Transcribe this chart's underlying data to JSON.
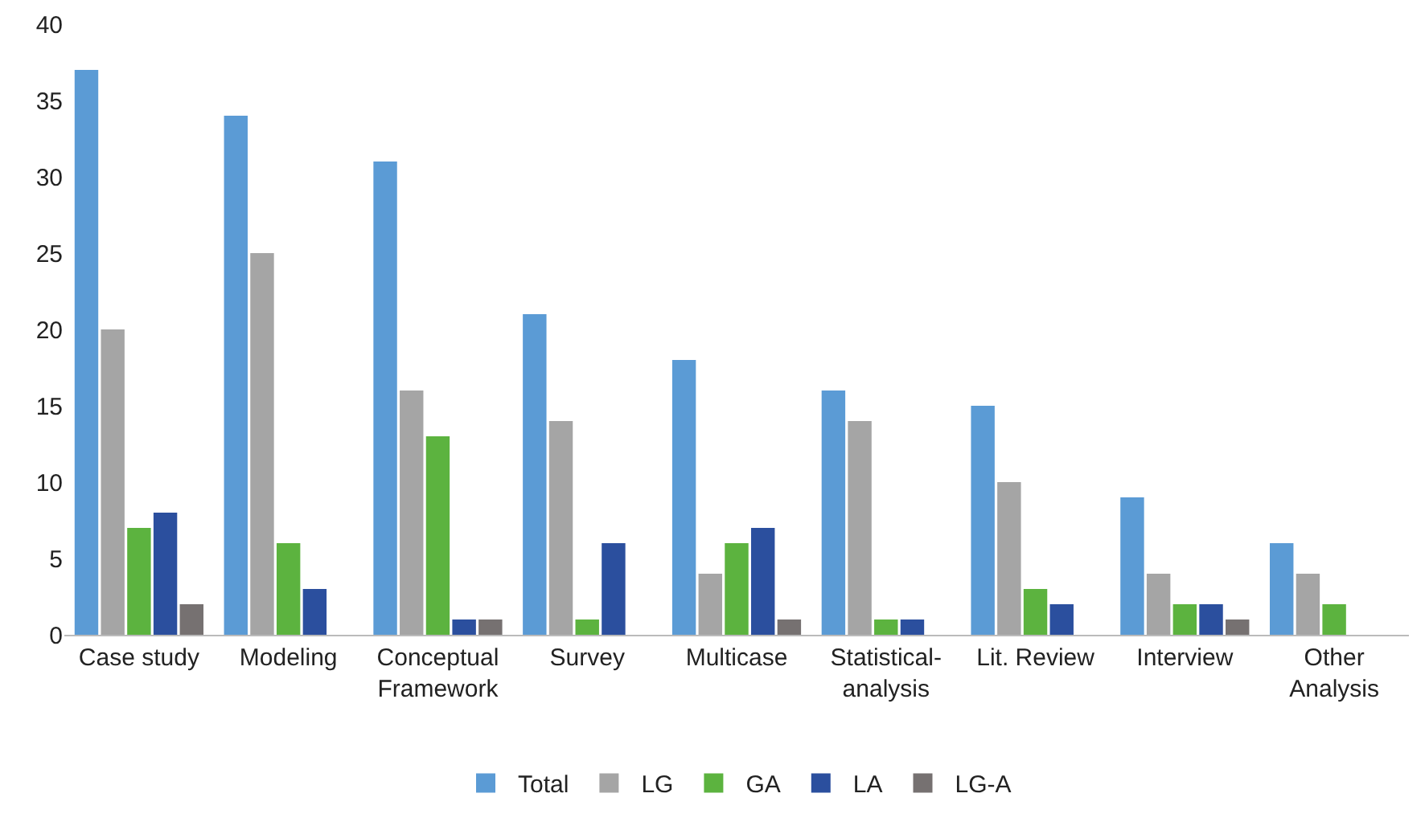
{
  "chart_data": {
    "type": "bar",
    "categories": [
      "Case study",
      "Modeling",
      "Conceptual Framework",
      "Survey",
      "Multicase",
      "Statistical-analysis",
      "Lit. Review",
      "Interview",
      "Other Analysis"
    ],
    "series": [
      {
        "name": "Total",
        "color": "#5b9bd5",
        "values": [
          37,
          34,
          31,
          21,
          18,
          16,
          15,
          9,
          6
        ]
      },
      {
        "name": "LG",
        "color": "#a5a5a5",
        "values": [
          20,
          25,
          16,
          14,
          4,
          14,
          10,
          4,
          4
        ]
      },
      {
        "name": "GA",
        "color": "#5cb33f",
        "values": [
          7,
          6,
          13,
          1,
          6,
          1,
          3,
          2,
          2
        ]
      },
      {
        "name": "LA",
        "color": "#2b4f9e",
        "values": [
          8,
          3,
          1,
          6,
          7,
          1,
          2,
          2,
          0
        ]
      },
      {
        "name": "LG-A",
        "color": "#767171",
        "values": [
          2,
          0,
          1,
          0,
          1,
          0,
          0,
          1,
          0
        ]
      }
    ],
    "ylim": [
      0,
      40
    ],
    "yticks": [
      0,
      5,
      10,
      15,
      20,
      25,
      30,
      35,
      40
    ],
    "grid": false,
    "legend": "bottom"
  }
}
